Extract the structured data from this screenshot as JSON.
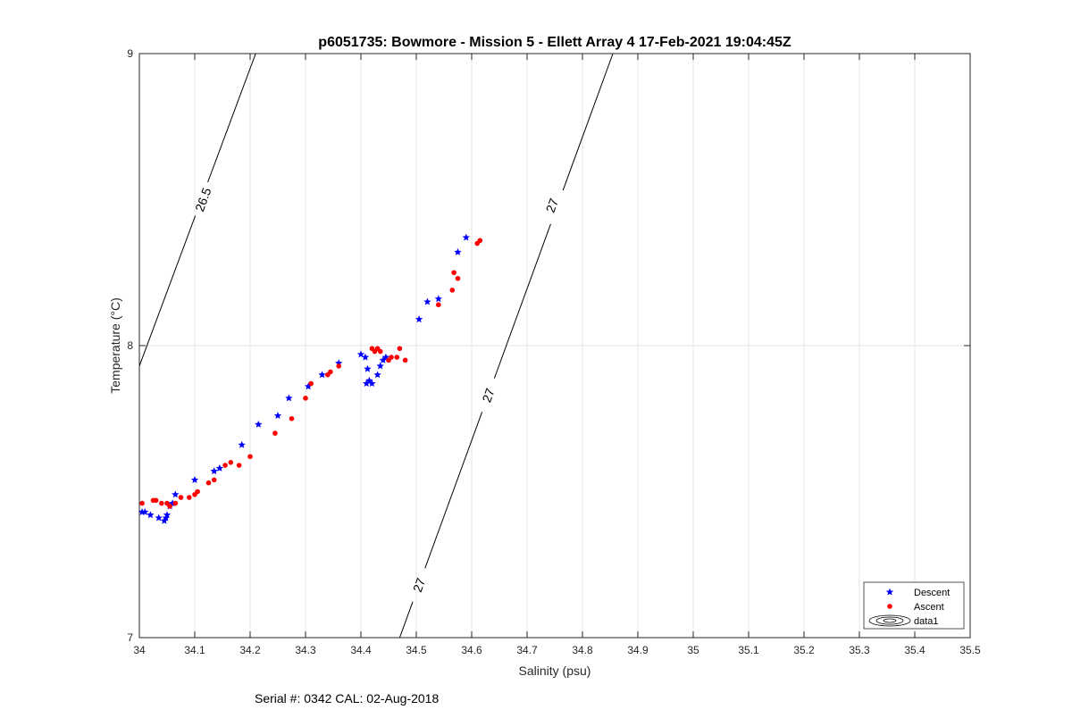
{
  "chart_data": {
    "type": "scatter",
    "title": "p6051735: Bowmore - Mission 5 - Ellett Array 4 17-Feb-2021 19:04:45Z",
    "xlabel": "Salinity (psu)",
    "ylabel": "Temperature (°C)",
    "xlim": [
      34,
      35.5
    ],
    "ylim": [
      7,
      9
    ],
    "x_ticks": [
      "34",
      "34.1",
      "34.2",
      "34.3",
      "34.4",
      "34.5",
      "34.6",
      "34.7",
      "34.8",
      "34.9",
      "35",
      "35.1",
      "35.2",
      "35.3",
      "35.4",
      "35.5"
    ],
    "y_ticks": [
      "7",
      "8",
      "9"
    ],
    "grid": true,
    "legend_position": "bottom-right",
    "series": [
      {
        "name": "Descent",
        "color": "#0000ff",
        "marker": "pentagram",
        "points": [
          [
            34.005,
            7.43
          ],
          [
            34.01,
            7.43
          ],
          [
            34.02,
            7.42
          ],
          [
            34.035,
            7.41
          ],
          [
            34.045,
            7.4
          ],
          [
            34.048,
            7.41
          ],
          [
            34.05,
            7.42
          ],
          [
            34.055,
            7.45
          ],
          [
            34.06,
            7.46
          ],
          [
            34.065,
            7.49
          ],
          [
            34.1,
            7.54
          ],
          [
            34.135,
            7.57
          ],
          [
            34.145,
            7.58
          ],
          [
            34.185,
            7.66
          ],
          [
            34.215,
            7.73
          ],
          [
            34.25,
            7.76
          ],
          [
            34.27,
            7.82
          ],
          [
            34.305,
            7.86
          ],
          [
            34.33,
            7.9
          ],
          [
            34.36,
            7.94
          ],
          [
            34.4,
            7.97
          ],
          [
            34.408,
            7.96
          ],
          [
            34.41,
            7.87
          ],
          [
            34.415,
            7.88
          ],
          [
            34.42,
            7.87
          ],
          [
            34.412,
            7.92
          ],
          [
            34.43,
            7.9
          ],
          [
            34.435,
            7.93
          ],
          [
            34.44,
            7.95
          ],
          [
            34.445,
            7.96
          ],
          [
            34.505,
            8.09
          ],
          [
            34.52,
            8.15
          ],
          [
            34.54,
            8.16
          ],
          [
            34.575,
            8.32
          ],
          [
            34.59,
            8.37
          ]
        ]
      },
      {
        "name": "Ascent",
        "color": "#ff0000",
        "marker": "circle",
        "points": [
          [
            34.005,
            7.46
          ],
          [
            34.025,
            7.47
          ],
          [
            34.03,
            7.47
          ],
          [
            34.04,
            7.46
          ],
          [
            34.05,
            7.46
          ],
          [
            34.055,
            7.45
          ],
          [
            34.065,
            7.46
          ],
          [
            34.075,
            7.48
          ],
          [
            34.09,
            7.48
          ],
          [
            34.1,
            7.49
          ],
          [
            34.105,
            7.5
          ],
          [
            34.125,
            7.53
          ],
          [
            34.135,
            7.54
          ],
          [
            34.155,
            7.59
          ],
          [
            34.165,
            7.6
          ],
          [
            34.18,
            7.59
          ],
          [
            34.2,
            7.62
          ],
          [
            34.245,
            7.7
          ],
          [
            34.275,
            7.75
          ],
          [
            34.3,
            7.82
          ],
          [
            34.31,
            7.87
          ],
          [
            34.34,
            7.9
          ],
          [
            34.345,
            7.91
          ],
          [
            34.36,
            7.93
          ],
          [
            34.42,
            7.99
          ],
          [
            34.425,
            7.98
          ],
          [
            34.43,
            7.99
          ],
          [
            34.435,
            7.98
          ],
          [
            34.45,
            7.95
          ],
          [
            34.455,
            7.96
          ],
          [
            34.465,
            7.96
          ],
          [
            34.47,
            7.99
          ],
          [
            34.48,
            7.95
          ],
          [
            34.54,
            8.14
          ],
          [
            34.565,
            8.19
          ],
          [
            34.568,
            8.25
          ],
          [
            34.575,
            8.23
          ],
          [
            34.61,
            8.35
          ],
          [
            34.615,
            8.36
          ]
        ]
      }
    ],
    "contours": [
      {
        "name": "data1",
        "label": "26.5",
        "color": "#000000",
        "points": [
          [
            34.0,
            7.93
          ],
          [
            34.21,
            9.0
          ]
        ],
        "label_positions": [
          [
            34.115,
            8.5
          ]
        ]
      },
      {
        "name": "data1",
        "label": "27",
        "color": "#000000",
        "points": [
          [
            34.47,
            7.0
          ],
          [
            34.855,
            9.0
          ]
        ],
        "label_positions": [
          [
            34.505,
            7.18
          ],
          [
            34.63,
            7.83
          ],
          [
            34.745,
            8.48
          ]
        ]
      }
    ],
    "legend": [
      {
        "label": "Descent",
        "marker": "pentagram",
        "color": "#0000ff"
      },
      {
        "label": "Ascent",
        "marker": "circle",
        "color": "#ff0000"
      },
      {
        "label": "data1",
        "marker": "contour",
        "color": "#000000"
      }
    ]
  },
  "footer": {
    "serial_text": "Serial #: 0342  CAL: 02-Aug-2018"
  }
}
